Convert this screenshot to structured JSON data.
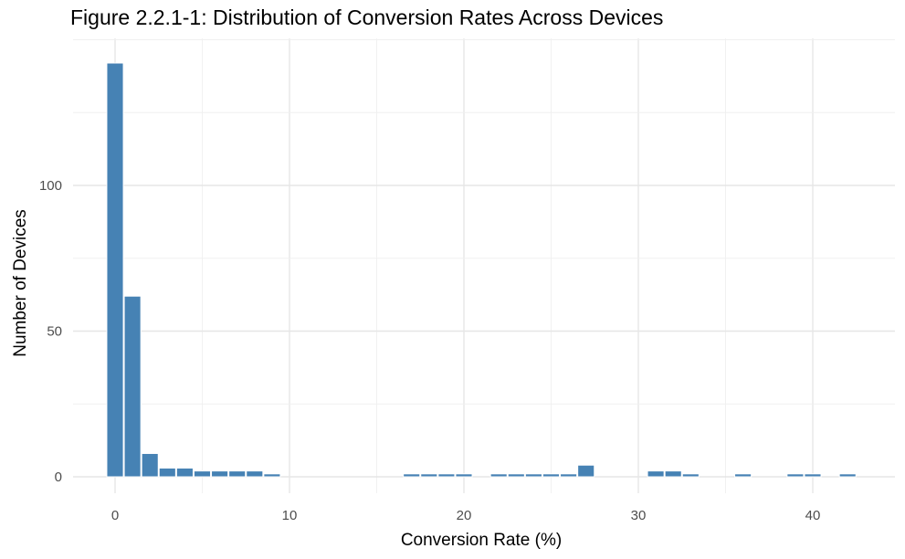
{
  "chart_data": {
    "type": "bar",
    "title": "Figure 2.2.1-1: Distribution of Conversion Rates Across Devices",
    "xlabel": "Conversion Rate (%)",
    "ylabel": "Number of Devices",
    "bin_width": 1,
    "xlim": [
      -2.5,
      44
    ],
    "ylim": [
      0,
      143
    ],
    "x_ticks": [
      0,
      10,
      20,
      30,
      40
    ],
    "y_ticks": [
      0,
      50,
      100
    ],
    "grid": true,
    "color": "#4682B4",
    "bins": [
      {
        "x": 0,
        "count": 142
      },
      {
        "x": 1,
        "count": 62
      },
      {
        "x": 2,
        "count": 8
      },
      {
        "x": 3,
        "count": 3
      },
      {
        "x": 4,
        "count": 3
      },
      {
        "x": 5,
        "count": 2
      },
      {
        "x": 6,
        "count": 2
      },
      {
        "x": 7,
        "count": 2
      },
      {
        "x": 8,
        "count": 2
      },
      {
        "x": 9,
        "count": 1
      },
      {
        "x": 17,
        "count": 1
      },
      {
        "x": 18,
        "count": 1
      },
      {
        "x": 19,
        "count": 1
      },
      {
        "x": 20,
        "count": 1
      },
      {
        "x": 22,
        "count": 1
      },
      {
        "x": 23,
        "count": 1
      },
      {
        "x": 24,
        "count": 1
      },
      {
        "x": 25,
        "count": 1
      },
      {
        "x": 26,
        "count": 1
      },
      {
        "x": 27,
        "count": 4
      },
      {
        "x": 31,
        "count": 2
      },
      {
        "x": 32,
        "count": 2
      },
      {
        "x": 33,
        "count": 1
      },
      {
        "x": 36,
        "count": 1
      },
      {
        "x": 39,
        "count": 1
      },
      {
        "x": 40,
        "count": 1
      },
      {
        "x": 42,
        "count": 1
      }
    ]
  }
}
